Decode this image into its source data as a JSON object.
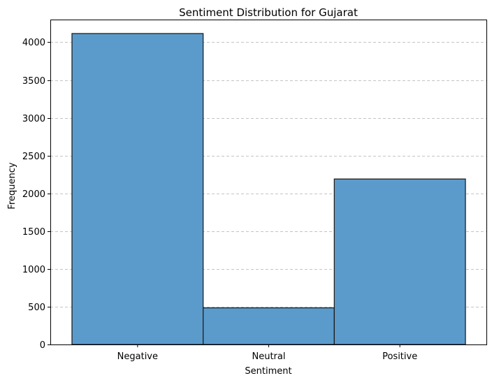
{
  "chart_data": {
    "type": "bar",
    "title": "Sentiment Distribution for Gujarat",
    "xlabel": "Sentiment",
    "ylabel": "Frequency",
    "categories": [
      "Negative",
      "Neutral",
      "Positive"
    ],
    "values": [
      4115,
      485,
      2190
    ],
    "ylim": [
      0,
      4300
    ],
    "yticks": [
      0,
      500,
      1000,
      1500,
      2000,
      2500,
      3000,
      3500,
      4000
    ],
    "grid": "y-dashed",
    "bar_color": "#5b9bcc",
    "edge_color": "#1f1f1f",
    "legend": false
  }
}
